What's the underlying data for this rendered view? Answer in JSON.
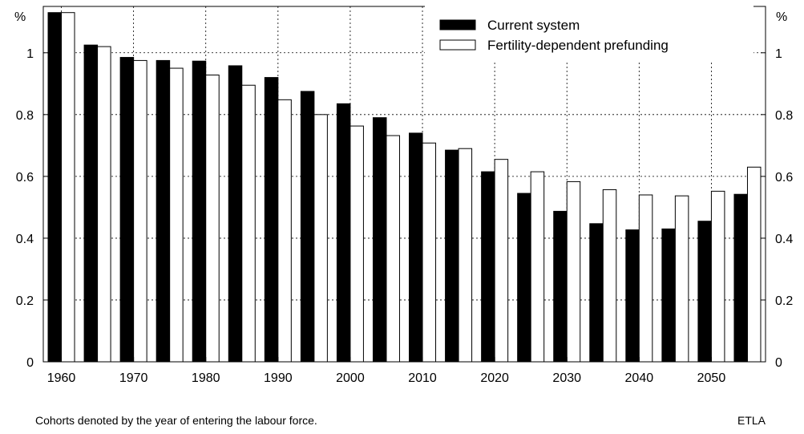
{
  "chart_data": {
    "type": "bar",
    "ylabel_left": "%",
    "ylabel_right": "%",
    "ylim": [
      0,
      1.15
    ],
    "yticks": [
      0,
      0.2,
      0.4,
      0.6,
      0.8,
      1
    ],
    "ytick_labels": [
      "0",
      "0.2",
      "0.4",
      "0.6",
      "0.8",
      "1"
    ],
    "categories": [
      1960,
      1965,
      1970,
      1975,
      1980,
      1985,
      1990,
      1995,
      2000,
      2005,
      2010,
      2015,
      2020,
      2025,
      2030,
      2035,
      2040,
      2045,
      2050,
      2055
    ],
    "xtick_labels": [
      "1960",
      "1970",
      "1980",
      "1990",
      "2000",
      "2010",
      "2020",
      "2030",
      "2040",
      "2050"
    ],
    "grid": true,
    "legend_position": "top-right",
    "series": [
      {
        "name": "Current system",
        "color": "#000000",
        "values": [
          1.13,
          1.025,
          0.985,
          0.975,
          0.973,
          0.958,
          0.92,
          0.875,
          0.835,
          0.79,
          0.74,
          0.685,
          0.615,
          0.545,
          0.487,
          0.447,
          0.427,
          0.43,
          0.455,
          0.542
        ]
      },
      {
        "name": "Fertility-dependent prefunding",
        "color": "#ffffff",
        "values": [
          1.13,
          1.02,
          0.975,
          0.95,
          0.928,
          0.895,
          0.848,
          0.8,
          0.763,
          0.732,
          0.708,
          0.69,
          0.655,
          0.615,
          0.583,
          0.557,
          0.54,
          0.537,
          0.552,
          0.63
        ]
      }
    ]
  },
  "footnote": "Cohorts denoted by the year of entering the labour force.",
  "source": "ETLA"
}
